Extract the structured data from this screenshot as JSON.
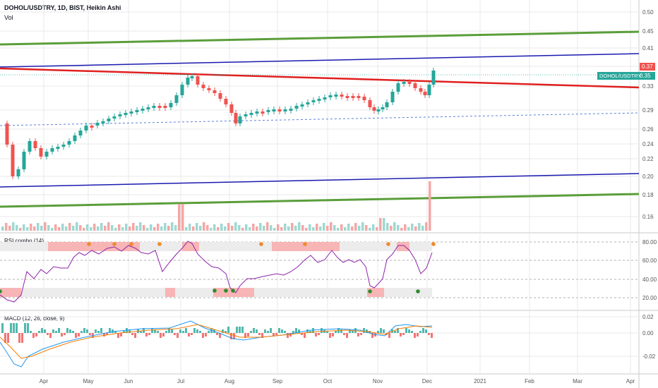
{
  "header": {
    "symbol_line": "DOHOL/USDTRY, 1D, BIST, Heikin Ashi",
    "vol_label": "Vol"
  },
  "colors": {
    "up": "#26a69a",
    "down": "#ef5350",
    "green_channel": "#5a9e3a",
    "blue_channel": "#1a1ab0",
    "red_line": "#e02020",
    "rsi_line": "#8e24aa",
    "macd_line": "#2196f3",
    "signal_line": "#f57c00",
    "grid": "#e8e8e8"
  },
  "price_panel": {
    "y_ticks": [
      "0.50",
      "0.45",
      "0.41",
      "0.37",
      "0.33",
      "0.29",
      "0.26",
      "0.24",
      "0.22",
      "0.20",
      "0.18",
      "0.16"
    ],
    "last_close_badge": "0.37",
    "symbol_badge": "DOHOL/USDTRY",
    "symbol_badge_value": "0.35"
  },
  "rsi_panel": {
    "title": "RSI combo (14)",
    "y_ticks": [
      "80.00",
      "60.00",
      "40.00",
      "20.00"
    ]
  },
  "macd_panel": {
    "title": "MACD (12, 26, close, 9)",
    "y_ticks": [
      "0.02",
      "0.00",
      "-0.02"
    ]
  },
  "x_axis": {
    "labels": [
      "Apr",
      "May",
      "Jun",
      "Jul",
      "Aug",
      "Sep",
      "Oct",
      "Nov",
      "Dec",
      "2021",
      "Feb",
      "Mar",
      "Apr"
    ]
  },
  "chart_data": [
    {
      "type": "line",
      "panel": "price",
      "x_labels": [
        "Apr",
        "May",
        "Jun",
        "Jul",
        "Aug",
        "Sep",
        "Oct",
        "Nov",
        "Dec"
      ],
      "close_approx": [
        0.21,
        0.25,
        0.3,
        0.36,
        0.28,
        0.3,
        0.32,
        0.3,
        0.36
      ],
      "last_value": 0.37,
      "y_range": [
        0.15,
        0.51
      ]
    },
    {
      "type": "line",
      "panel": "rsi",
      "y_range": [
        10,
        90
      ],
      "levels": [
        80,
        70,
        30,
        20
      ]
    },
    {
      "type": "line",
      "panel": "macd",
      "y_range": [
        -0.03,
        0.03
      ]
    }
  ]
}
